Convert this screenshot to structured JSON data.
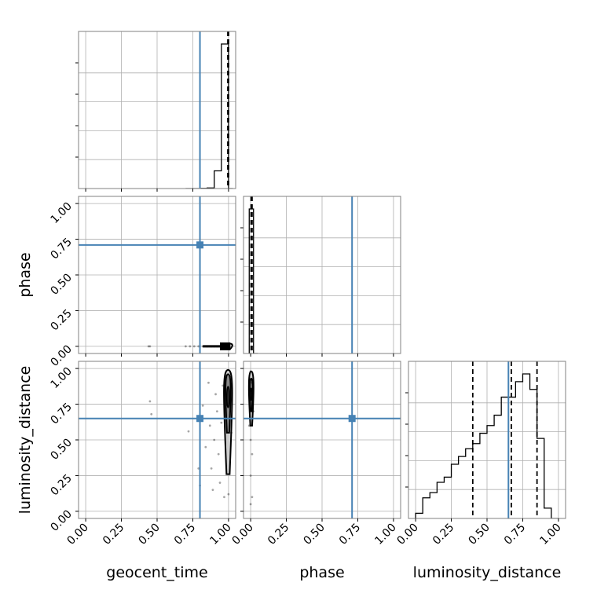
{
  "chart_data": {
    "type": "corner",
    "parameters": [
      "geocent_time",
      "phase",
      "luminosity_distance"
    ],
    "axis_labels": {
      "geocent_time": "geocent_time",
      "phase": "phase",
      "luminosity_distance": "luminosity_distance"
    },
    "tick_values": [
      0.0,
      0.25,
      0.5,
      0.75,
      1.0
    ],
    "tick_labels": [
      "0.00",
      "0.25",
      "0.50",
      "0.75",
      "1.00"
    ],
    "axis_range": [
      -0.05,
      1.05
    ],
    "grid": true,
    "truths": {
      "geocent_time": 0.8,
      "phase": 0.71,
      "luminosity_distance": 0.65
    },
    "truth_color": "#4682b4",
    "histograms": {
      "geocent_time": {
        "bin_edges": [
          0.7,
          0.8,
          0.85,
          0.9,
          0.95,
          1.0,
          1.03
        ],
        "counts": [
          0,
          1,
          4,
          120,
          980,
          0
        ],
        "quantiles": [
          0.995,
          0.999,
          1.0
        ]
      },
      "phase": {
        "bin_edges": [
          -0.01,
          0.02,
          0.05
        ],
        "counts": [
          1000,
          0
        ],
        "quantiles": [
          0.003,
          0.006,
          0.01
        ]
      },
      "luminosity_distance": {
        "bin_edges": [
          0.0,
          0.05,
          0.1,
          0.15,
          0.2,
          0.25,
          0.3,
          0.35,
          0.4,
          0.45,
          0.5,
          0.55,
          0.6,
          0.65,
          0.7,
          0.75,
          0.8,
          0.85,
          0.9,
          0.95,
          1.0
        ],
        "counts": [
          2,
          8,
          10,
          14,
          16,
          21,
          24,
          27,
          29,
          33,
          36,
          40,
          47,
          47,
          53,
          56,
          50,
          31,
          4,
          0
        ],
        "quantiles": [
          0.4,
          0.67,
          0.85
        ]
      }
    },
    "scatter": {
      "geocent_time__phase": [
        [
          0.44,
          0.0
        ],
        [
          0.45,
          0.0
        ],
        [
          0.7,
          0.0
        ],
        [
          0.73,
          0.0
        ],
        [
          0.76,
          0.0
        ],
        [
          0.79,
          0.0
        ],
        [
          0.82,
          0.0
        ],
        [
          0.85,
          0.0
        ],
        [
          0.88,
          0.0
        ],
        [
          0.9,
          0.0
        ],
        [
          0.92,
          0.0
        ],
        [
          0.94,
          0.0
        ],
        [
          0.96,
          0.0
        ],
        [
          0.98,
          0.0
        ],
        [
          1.0,
          0.0
        ],
        [
          1.01,
          0.0
        ]
      ],
      "geocent_time__luminosity_distance": [
        [
          0.45,
          0.77
        ],
        [
          0.46,
          0.68
        ],
        [
          0.72,
          0.56
        ],
        [
          0.79,
          0.3
        ],
        [
          0.8,
          0.18
        ],
        [
          0.82,
          0.74
        ],
        [
          0.84,
          0.45
        ],
        [
          0.86,
          0.9
        ],
        [
          0.87,
          0.6
        ],
        [
          0.88,
          0.3
        ],
        [
          0.89,
          0.15
        ],
        [
          0.9,
          0.5
        ],
        [
          0.91,
          0.82
        ],
        [
          0.92,
          0.7
        ],
        [
          0.93,
          0.4
        ],
        [
          0.94,
          0.2
        ],
        [
          0.95,
          0.62
        ],
        [
          0.96,
          0.88
        ],
        [
          0.97,
          0.1
        ],
        [
          0.98,
          0.95
        ],
        [
          1.0,
          0.12
        ],
        [
          1.02,
          0.55
        ]
      ],
      "phase__luminosity_distance": [
        [
          0.0,
          0.98
        ],
        [
          0.01,
          0.9
        ],
        [
          -0.01,
          0.85
        ],
        [
          0.0,
          0.5
        ],
        [
          0.01,
          0.4
        ],
        [
          0.0,
          0.25
        ],
        [
          0.01,
          0.1
        ],
        [
          0.0,
          0.05
        ],
        [
          -0.01,
          0.6
        ],
        [
          0.02,
          0.7
        ]
      ]
    },
    "contours": {
      "geocent_time__luminosity_distance": {
        "center": [
          0.997,
          0.8
        ],
        "outer": {
          "dx": 0.032,
          "y_range": [
            0.26,
            0.99
          ]
        },
        "inner": {
          "dx": 0.02,
          "y_range": [
            0.55,
            0.96
          ]
        }
      },
      "phase__luminosity_distance": {
        "center": [
          0.004,
          0.82
        ],
        "outer": {
          "dx": 0.018,
          "y_range": [
            0.6,
            0.98
          ]
        },
        "inner": {
          "dx": 0.011,
          "y_range": [
            0.7,
            0.93
          ]
        }
      },
      "geocent_time__phase": {
        "center": [
          1.0,
          0.0
        ],
        "outer": {
          "dx": 0.03,
          "y_range": [
            -0.02,
            0.02
          ]
        }
      }
    }
  }
}
